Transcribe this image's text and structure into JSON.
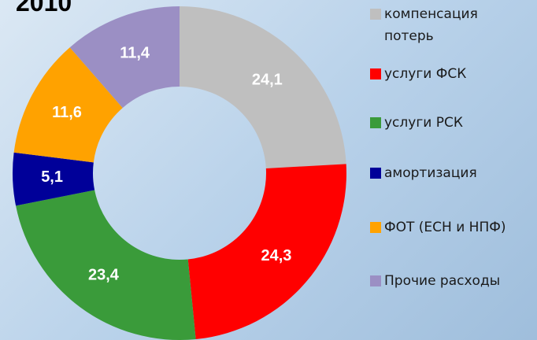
{
  "chart_data": {
    "type": "donut",
    "title": "2010",
    "categories": [
      "компенсация потерь",
      "услуги ФСК",
      "услуги РСК",
      "амортизация",
      "ФОТ (ЕСН и НПФ)",
      "Прочие расходы"
    ],
    "values": [
      24.1,
      24.3,
      23.4,
      5.1,
      11.6,
      11.4
    ],
    "value_labels": [
      "24,1",
      "24,3",
      "23,4",
      "5,1",
      "11,6",
      "11,4"
    ],
    "colors": [
      "#bfbfbf",
      "#ff0000",
      "#3a9b3a",
      "#000099",
      "#ffa200",
      "#9b8fc4"
    ],
    "legend": "right"
  }
}
